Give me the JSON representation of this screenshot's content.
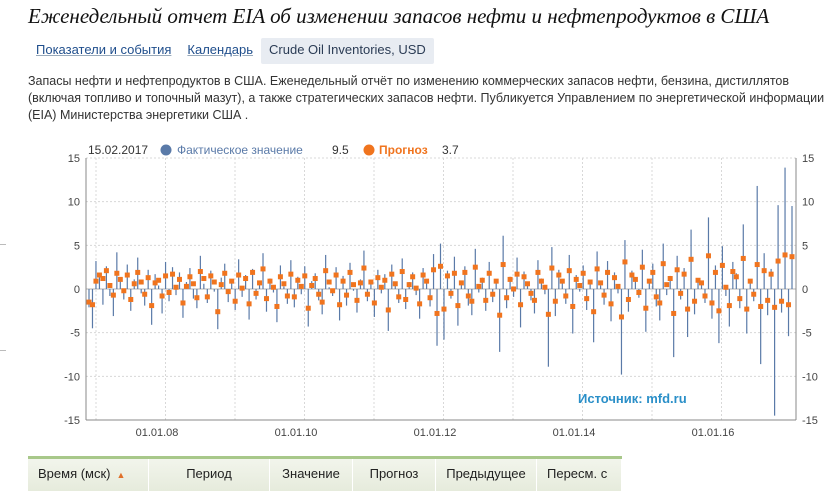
{
  "page": {
    "title": "Еженедельный отчет EIA об изменении запасов нефти и нефтепродуктов в США",
    "tabs": [
      {
        "label": "Показатели и события",
        "active": false
      },
      {
        "label": "Календарь",
        "active": false
      },
      {
        "label": "Crude Oil Inventories, USD",
        "active": true
      }
    ],
    "description": "Запасы нефти и нефтепродуктов в США. Еженедельный отчёт по изменению коммерческих запасов нефти, бензина, дистиллятов (включая топливо и топочный мазут), а также стратегических запасов нефти. Публикуется Управлением по энергетической информации (EIA) Министерства энергетики США ."
  },
  "legend": {
    "date": "15.02.2017",
    "actual_label": "Фактическое значение",
    "actual_value": "9.5",
    "forecast_label": "Прогноз",
    "forecast_value": "3.7"
  },
  "source_note": "Источник: mfd.ru",
  "table": {
    "headers": [
      "Время (мск)",
      "Период",
      "Значение",
      "Прогноз",
      "Предыдущее",
      "Пересм. с"
    ],
    "sort_column": 0
  },
  "colors": {
    "actual": "#5a7aa8",
    "forecast": "#f0741e",
    "source": "#2a8fc8",
    "grid": "#d8d8d8"
  },
  "chart_data": {
    "type": "bar",
    "x_label": "",
    "y_label": "",
    "ylim": [
      -15,
      15
    ],
    "yticks": [
      -15,
      -10,
      -5,
      0,
      5,
      10,
      15
    ],
    "xticks": [
      "01.01.08",
      "01.01.10",
      "01.01.12",
      "01.01.14",
      "01.01.16"
    ],
    "grid": true,
    "legend_position": "top-left",
    "series": [
      {
        "name": "Фактическое значение",
        "style": "bars",
        "color": "#5a7aa8",
        "values": [
          -2.1,
          -4.5,
          3.2,
          1.5,
          -1.8,
          2.6,
          -0.8,
          -3.1,
          4.2,
          0.9,
          -1.2,
          2.8,
          -2.5,
          1.1,
          3.6,
          -0.5,
          -1.9,
          2.2,
          -4.1,
          1.7,
          0.4,
          -2.8,
          3.1,
          -1.4,
          2.5,
          -0.7,
          1.9,
          -3.3,
          0.8,
          2.4,
          -1.1,
          -2.2,
          3.8,
          0.6,
          -1.6,
          2.1,
          -0.3,
          -4.6,
          1.3,
          2.9,
          -1.5,
          0.7,
          -2.4,
          3.4,
          -0.9,
          1.6,
          -3.5,
          2.3,
          -1.2,
          0.5,
          4.1,
          -2.6,
          1.2,
          -0.4,
          -3.8,
          2.7,
          0.3,
          -1.7,
          3.3,
          -2.1,
          1.4,
          -0.6,
          2.6,
          -4.3,
          0.9,
          1.8,
          -1.3,
          -2.9,
          3.9,
          0.2,
          -0.8,
          2.5,
          -3.6,
          1.5,
          -1.9,
          3.0,
          -0.2,
          -2.7,
          1.1,
          4.4,
          -1.4,
          0.6,
          -3.2,
          2.2,
          -0.5,
          1.7,
          -4.8,
          2.8,
          0.4,
          -1.6,
          3.5,
          -2.3,
          0.8,
          1.9,
          -0.7,
          -3.4,
          2.4,
          1.0,
          -2.0,
          4.0,
          -6.5,
          5.2,
          -5.8,
          2.1,
          -1.1,
          3.7,
          -4.2,
          0.6,
          2.6,
          -1.9,
          -3.0,
          4.6,
          -0.4,
          1.3,
          -2.5,
          3.1,
          -1.5,
          0.7,
          -7.2,
          6.1,
          -2.2,
          1.4,
          -0.9,
          3.6,
          -4.4,
          2.0,
          0.5,
          -1.3,
          -2.8,
          3.3,
          1.2,
          -0.6,
          -8.9,
          4.8,
          -3.1,
          2.2,
          0.9,
          -1.7,
          3.9,
          -5.1,
          1.6,
          -0.3,
          2.7,
          -2.4,
          1.0,
          -6.1,
          4.3,
          0.4,
          -1.8,
          3.2,
          -3.7,
          1.9,
          -0.5,
          -9.8,
          5.6,
          -2.6,
          2.1,
          1.3,
          -1.0,
          4.5,
          -4.9,
          0.8,
          2.9,
          -2.0,
          -3.6,
          5.2,
          -0.7,
          1.5,
          -7.8,
          3.8,
          -1.2,
          2.4,
          -5.5,
          6.8,
          -2.9,
          1.1,
          0.6,
          -1.6,
          8.2,
          -3.4,
          2.7,
          -6.2,
          4.9,
          -0.8,
          -4.3,
          3.1,
          1.8,
          -2.2,
          7.4,
          -5.1,
          0.9,
          -1.4,
          11.8,
          -8.6,
          4.1,
          -3.0,
          2.3,
          -14.5,
          9.6,
          -2.7,
          13.9,
          -5.4,
          9.5
        ]
      },
      {
        "name": "Прогноз",
        "style": "markers",
        "color": "#f0741e",
        "values": [
          -1.5,
          -1.8,
          0.9,
          1.6,
          1.2,
          2.1,
          0.4,
          -0.7,
          1.8,
          1.1,
          -0.2,
          1.6,
          -1.2,
          0.6,
          1.9,
          0.8,
          -0.6,
          1.3,
          -1.9,
          0.7,
          1.0,
          -0.8,
          1.5,
          -0.4,
          1.7,
          0.2,
          1.1,
          -1.6,
          0.3,
          1.4,
          0.6,
          -1.0,
          2.0,
          1.2,
          -0.9,
          1.5,
          0.8,
          -2.6,
          0.5,
          1.8,
          -0.3,
          0.9,
          -1.4,
          1.6,
          0.1,
          1.2,
          -1.7,
          1.9,
          -0.5,
          0.7,
          2.3,
          -1.1,
          0.9,
          0.2,
          -2.0,
          1.4,
          0.6,
          -0.8,
          1.7,
          -0.9,
          1.0,
          0.3,
          1.5,
          -2.2,
          0.4,
          1.2,
          -0.6,
          -1.5,
          2.1,
          0.8,
          -0.2,
          1.6,
          -1.8,
          0.9,
          -0.7,
          1.9,
          0.5,
          -1.3,
          0.7,
          2.4,
          -0.6,
          0.8,
          -1.6,
          1.3,
          0.2,
          1.0,
          -2.4,
          1.7,
          0.6,
          -0.9,
          2.0,
          -1.2,
          0.5,
          1.4,
          0.1,
          -1.7,
          1.6,
          0.9,
          -1.0,
          2.2,
          -2.8,
          2.6,
          -2.3,
          1.5,
          -0.5,
          1.8,
          -1.9,
          0.7,
          1.9,
          -0.8,
          -1.4,
          2.5,
          0.3,
          1.0,
          -1.3,
          1.8,
          -0.6,
          0.9,
          -3.0,
          2.8,
          -1.0,
          1.1,
          0.0,
          1.7,
          -1.8,
          1.4,
          0.6,
          -0.5,
          -1.3,
          1.9,
          0.9,
          0.2,
          -2.9,
          2.4,
          -1.4,
          1.6,
          0.9,
          -0.8,
          2.1,
          -2.0,
          1.1,
          0.4,
          1.8,
          -1.1,
          0.8,
          -2.6,
          2.3,
          0.7,
          -0.7,
          1.9,
          -1.7,
          1.3,
          0.3,
          -3.2,
          3.1,
          -1.2,
          1.6,
          1.1,
          -0.4,
          2.5,
          -2.2,
          0.9,
          1.9,
          -0.9,
          -1.6,
          2.9,
          0.5,
          1.2,
          -2.8,
          2.2,
          -0.5,
          1.7,
          -2.3,
          3.4,
          -1.4,
          1.0,
          0.7,
          -0.8,
          3.8,
          -1.6,
          1.9,
          -2.5,
          2.7,
          0.2,
          -1.9,
          2.0,
          1.4,
          -1.1,
          3.5,
          -2.3,
          0.9,
          -0.6,
          2.8,
          -2.0,
          2.1,
          -1.3,
          1.7,
          -2.1,
          3.2,
          -1.4,
          3.9,
          -1.8,
          3.7
        ]
      }
    ]
  }
}
